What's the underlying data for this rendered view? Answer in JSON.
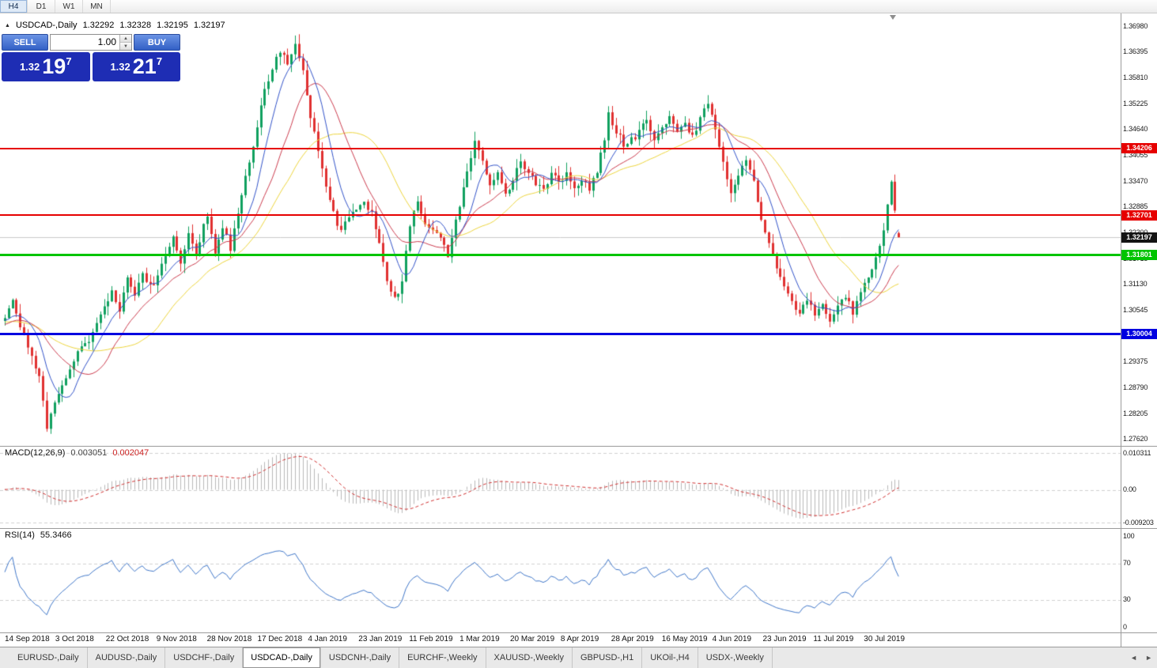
{
  "colors": {
    "up": "#10a05f",
    "down": "#e03030",
    "ma_fast": "#3152c8",
    "ma_mid": "#cb3b4d",
    "ma_slow": "#ecd43c",
    "hline_red": "#e60000",
    "hline_green": "#00c400",
    "hline_blue": "#0000e0",
    "current_box": "#141414",
    "macd_hist": "#b9b9b9",
    "macd_signal": "#cf2e2e",
    "rsi_line": "#3f76c8",
    "panel_navy": "#1e2db4",
    "button_blue": "#3360c6"
  },
  "toolbar": {
    "timeframes": [
      "H4",
      "D1",
      "W1",
      "MN"
    ],
    "active_index": 0
  },
  "chart_header": {
    "icon": "▲",
    "title": "USDCAD-,Daily",
    "open": "1.32292",
    "high": "1.32328",
    "low": "1.32195",
    "close": "1.32197"
  },
  "trade_panel": {
    "sell_label": "SELL",
    "buy_label": "BUY",
    "volume": "1.00",
    "spinner_up": "▲",
    "spinner_down": "▼",
    "sell_price": {
      "prefix": "1.32",
      "big": "19",
      "sup": "7"
    },
    "buy_price": {
      "prefix": "1.32",
      "big": "21",
      "sup": "7"
    }
  },
  "price_axis": {
    "labels": [
      "1.36980",
      "1.36395",
      "1.35810",
      "1.35225",
      "1.34640",
      "1.34055",
      "1.33470",
      "1.32885",
      "1.32300",
      "1.31715",
      "1.31130",
      "1.30545",
      "1.29960",
      "1.29375",
      "1.28790",
      "1.28205",
      "1.27620"
    ]
  },
  "levels": {
    "resistance1": {
      "price": 1.34206,
      "label": "1.34206"
    },
    "resistance2": {
      "price": 1.32701,
      "label": "1.32701"
    },
    "support_green": {
      "price": 1.31801,
      "label": "1.31801"
    },
    "support_blue": {
      "price": 1.30004,
      "label": "1.30004"
    },
    "current": {
      "price": 1.32197,
      "label": "1.32197"
    }
  },
  "macd_panel": {
    "label": "MACD(12,26,9)",
    "main_value": "0.003051",
    "signal_value": "0.002047",
    "axis": [
      "0.010311",
      "0.00",
      "-0.009203"
    ]
  },
  "rsi_panel": {
    "label": "RSI(14)",
    "value": "55.3466",
    "axis": [
      "100",
      "70",
      "30",
      "0"
    ]
  },
  "date_axis": {
    "labels": [
      "14 Sep 2018",
      "3 Oct 2018",
      "22 Oct 2018",
      "9 Nov 2018",
      "28 Nov 2018",
      "17 Dec 2018",
      "4 Jan 2019",
      "23 Jan 2019",
      "11 Feb 2019",
      "1 Mar 2019",
      "20 Mar 2019",
      "8 Apr 2019",
      "28 Apr 2019",
      "16 May 2019",
      "4 Jun 2019",
      "23 Jun 2019",
      "11 Jul 2019",
      "30 Jul 2019"
    ]
  },
  "tabs": {
    "items": [
      "EURUSD-,Daily",
      "AUDUSD-,Daily",
      "USDCHF-,Daily",
      "USDCAD-,Daily",
      "USDCNH-,Daily",
      "EURCHF-,Weekly",
      "XAUUSD-,Weekly",
      "GBPUSD-,H1",
      "UKOil-,H4",
      "USDX-,Weekly"
    ],
    "active_index": 3,
    "nav_left": "◄",
    "nav_right": "►"
  },
  "chart_data": {
    "type": "candlestick",
    "symbol": "USDCAD",
    "timeframe": "Daily",
    "visible_range": {
      "price_min": 1.2762,
      "price_max": 1.3698,
      "date_start": "14 Sep 2018",
      "date_end": "9 Aug 2019"
    },
    "last_ohlc": {
      "open": 1.32292,
      "high": 1.32328,
      "low": 1.32195,
      "close": 1.32197
    },
    "num_candles": 235,
    "key_extremes": {
      "oct_low": 1.2782,
      "dec_high": 1.3665,
      "may_high": 1.353,
      "jul_low": 1.3016,
      "aug_spike_high": 1.3349
    },
    "price_path_anchors": [
      [
        -45,
        1.299
      ],
      [
        -30,
        1.306
      ],
      [
        -15,
        1.301
      ],
      [
        0,
        1.304
      ],
      [
        2,
        1.3078
      ],
      [
        4,
        1.302
      ],
      [
        6,
        1.2965
      ],
      [
        9,
        1.2905
      ],
      [
        11,
        1.2788
      ],
      [
        13,
        1.2845
      ],
      [
        16,
        1.2905
      ],
      [
        19,
        1.2965
      ],
      [
        22,
        1.2978
      ],
      [
        24,
        1.3022
      ],
      [
        26,
        1.3062
      ],
      [
        28,
        1.3092
      ],
      [
        30,
        1.3052
      ],
      [
        32,
        1.3122
      ],
      [
        34,
        1.3086
      ],
      [
        36,
        1.3142
      ],
      [
        38,
        1.3106
      ],
      [
        40,
        1.3126
      ],
      [
        42,
        1.3182
      ],
      [
        44,
        1.3222
      ],
      [
        46,
        1.3166
      ],
      [
        48,
        1.3222
      ],
      [
        50,
        1.3186
      ],
      [
        52,
        1.3246
      ],
      [
        53,
        1.3266
      ],
      [
        55,
        1.3186
      ],
      [
        57,
        1.3246
      ],
      [
        59,
        1.3196
      ],
      [
        61,
        1.3272
      ],
      [
        63,
        1.3352
      ],
      [
        66,
        1.3472
      ],
      [
        68,
        1.3552
      ],
      [
        70,
        1.3602
      ],
      [
        72,
        1.3642
      ],
      [
        74,
        1.3616
      ],
      [
        76,
        1.3656
      ],
      [
        78,
        1.3602
      ],
      [
        80,
        1.3492
      ],
      [
        82,
        1.3422
      ],
      [
        84,
        1.3332
      ],
      [
        86,
        1.3272
      ],
      [
        88,
        1.3232
      ],
      [
        90,
        1.3266
      ],
      [
        92,
        1.3286
      ],
      [
        94,
        1.3302
      ],
      [
        96,
        1.3272
      ],
      [
        98,
        1.3202
      ],
      [
        100,
        1.3122
      ],
      [
        102,
        1.3086
      ],
      [
        104,
        1.3112
      ],
      [
        106,
        1.3252
      ],
      [
        108,
        1.3302
      ],
      [
        110,
        1.3252
      ],
      [
        113,
        1.3232
      ],
      [
        116,
        1.3182
      ],
      [
        119,
        1.3292
      ],
      [
        121,
        1.3362
      ],
      [
        123,
        1.3432
      ],
      [
        125,
        1.3392
      ],
      [
        127,
        1.3342
      ],
      [
        129,
        1.3362
      ],
      [
        131,
        1.3322
      ],
      [
        133,
        1.3346
      ],
      [
        135,
        1.3392
      ],
      [
        137,
        1.3362
      ],
      [
        139,
        1.3342
      ],
      [
        141,
        1.3332
      ],
      [
        143,
        1.3362
      ],
      [
        145,
        1.3342
      ],
      [
        147,
        1.3362
      ],
      [
        149,
        1.3332
      ],
      [
        151,
        1.3352
      ],
      [
        153,
        1.3332
      ],
      [
        155,
        1.3372
      ],
      [
        157,
        1.3442
      ],
      [
        158,
        1.3496
      ],
      [
        160,
        1.3462
      ],
      [
        162,
        1.3432
      ],
      [
        165,
        1.3446
      ],
      [
        168,
        1.3482
      ],
      [
        170,
        1.3436
      ],
      [
        172,
        1.3466
      ],
      [
        174,
        1.3492
      ],
      [
        176,
        1.3452
      ],
      [
        178,
        1.3482
      ],
      [
        180,
        1.3446
      ],
      [
        182,
        1.3492
      ],
      [
        184,
        1.3522
      ],
      [
        186,
        1.3466
      ],
      [
        188,
        1.3392
      ],
      [
        190,
        1.3322
      ],
      [
        192,
        1.3362
      ],
      [
        194,
        1.3402
      ],
      [
        196,
        1.3342
      ],
      [
        198,
        1.3262
      ],
      [
        200,
        1.3202
      ],
      [
        202,
        1.3152
      ],
      [
        204,
        1.3102
      ],
      [
        206,
        1.3072
      ],
      [
        208,
        1.3052
      ],
      [
        210,
        1.3076
      ],
      [
        212,
        1.3042
      ],
      [
        214,
        1.3062
      ],
      [
        216,
        1.3032
      ],
      [
        218,
        1.3062
      ],
      [
        220,
        1.3082
      ],
      [
        222,
        1.3052
      ],
      [
        224,
        1.3092
      ],
      [
        226,
        1.3132
      ],
      [
        228,
        1.3172
      ],
      [
        230,
        1.3232
      ],
      [
        231,
        1.3292
      ],
      [
        232,
        1.3345
      ],
      [
        233,
        1.3278
      ],
      [
        234,
        1.32197
      ]
    ],
    "horizontal_lines": [
      {
        "price": 1.34206,
        "color": "red"
      },
      {
        "price": 1.32701,
        "color": "red"
      },
      {
        "price": 1.31801,
        "color": "green"
      },
      {
        "price": 1.30004,
        "color": "blue"
      }
    ],
    "indicators": [
      {
        "name": "MACD",
        "params": [
          12,
          26,
          9
        ],
        "current": [
          0.003051,
          0.002047
        ],
        "range": [
          -0.009203,
          0.010311
        ]
      },
      {
        "name": "RSI",
        "params": [
          14
        ],
        "current": 55.3466,
        "levels": [
          30,
          70
        ]
      },
      {
        "name": "MovingAverages",
        "periods": [
          8,
          17,
          30
        ]
      }
    ]
  }
}
